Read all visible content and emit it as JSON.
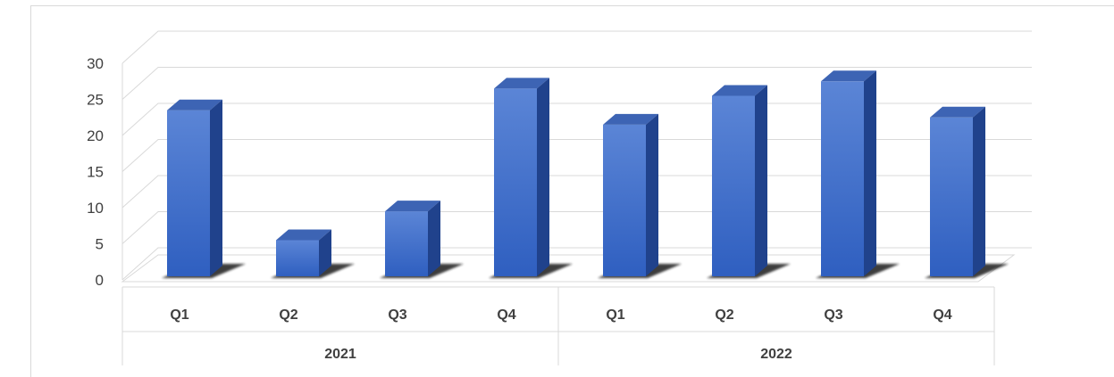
{
  "chart_data": {
    "type": "bar",
    "style": "3d-column",
    "categories": [
      "Q1",
      "Q2",
      "Q3",
      "Q4",
      "Q1",
      "Q2",
      "Q3",
      "Q4"
    ],
    "groups": [
      {
        "label": "2021",
        "start": 0,
        "count": 4
      },
      {
        "label": "2022",
        "start": 4,
        "count": 4
      }
    ],
    "values": [
      23,
      5,
      9,
      26,
      21,
      25,
      27,
      22
    ],
    "ylim": [
      0,
      30
    ],
    "yticks": [
      0,
      5,
      10,
      15,
      20,
      25,
      30
    ],
    "grid": true,
    "legend": "none"
  },
  "colors": {
    "bar_front_top": "#5b85d6",
    "bar_front_bottom": "#2f5fc0",
    "bar_top": "#3d64b4",
    "bar_side": "#20428c",
    "grid": "#d9d9d9",
    "floor_shadow": "#1a1a1a",
    "text": "#404040"
  }
}
